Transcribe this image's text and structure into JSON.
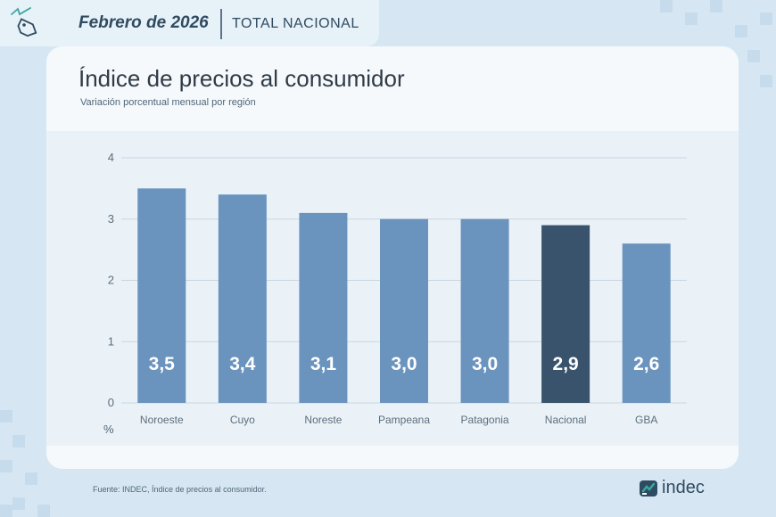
{
  "header": {
    "period": "Febrero de 2026",
    "scope": "TOTAL NACIONAL"
  },
  "title": "Índice de precios al consumidor",
  "subtitle": "Variación porcentual mensual por región",
  "footer": "Fuente: INDEC, Índice de precios al consumidor.",
  "logo": {
    "text": "indec"
  },
  "colors": {
    "bar": "#6a93bd",
    "highlight": "#38536b",
    "label": "#ffffff",
    "grid": "#c9d6e0",
    "tick": "#5c6e7c"
  },
  "chart_data": {
    "type": "bar",
    "categories": [
      "Noroeste",
      "Cuyo",
      "Noreste",
      "Pampeana",
      "Patagonia",
      "Nacional",
      "GBA"
    ],
    "values": [
      3.5,
      3.4,
      3.1,
      3.0,
      3.0,
      2.9,
      2.6
    ],
    "value_labels": [
      "3,5",
      "3,4",
      "3,1",
      "3,0",
      "3,0",
      "2,9",
      "2,6"
    ],
    "highlight_category": "Nacional",
    "ylim": [
      0,
      4
    ],
    "yticks": [
      0,
      1,
      2,
      3,
      4
    ],
    "ylabel": "%",
    "grid": true
  }
}
